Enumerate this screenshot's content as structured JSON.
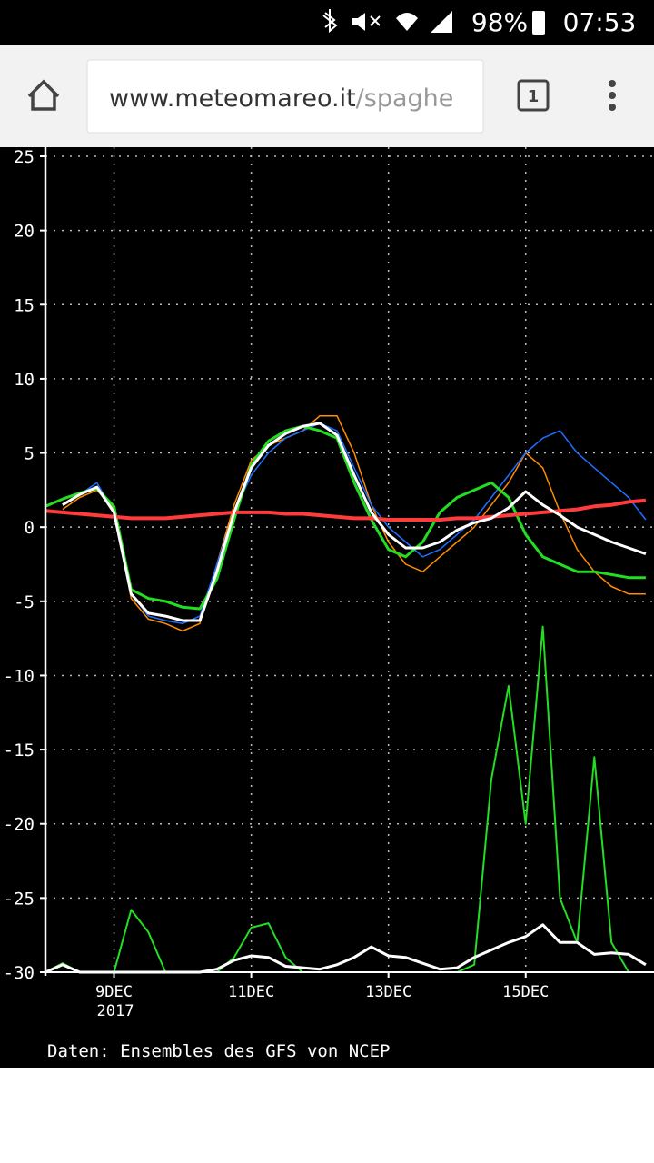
{
  "status_bar": {
    "battery": "98%",
    "time": "07:53"
  },
  "browser": {
    "url_domain": "www.meteomareo.it",
    "url_path": "/spaghe",
    "tab_count": "1"
  },
  "chart_data": {
    "type": "line",
    "year_label": "2017",
    "source": "Daten: Ensembles des GFS von NCEP",
    "x": [
      8,
      8.25,
      8.5,
      8.75,
      9,
      9.25,
      9.5,
      9.75,
      10,
      10.25,
      10.5,
      10.75,
      11,
      11.25,
      11.5,
      11.75,
      12,
      12.25,
      12.5,
      12.75,
      13,
      13.25,
      13.5,
      13.75,
      14,
      14.25,
      14.5,
      14.75,
      15,
      15.25,
      15.5,
      15.75,
      16,
      16.25,
      16.5,
      16.75
    ],
    "xlim": [
      8,
      16.87
    ],
    "xticks": [
      {
        "value": 9,
        "label": "9DEC"
      },
      {
        "value": 11,
        "label": "11DEC"
      },
      {
        "value": 13,
        "label": "13DEC"
      },
      {
        "value": 15,
        "label": "15DEC"
      },
      17
    ],
    "ylim": [
      -30,
      25
    ],
    "yticks": [
      25,
      20,
      15,
      10,
      5,
      0,
      -5,
      -10,
      -15,
      -20,
      -25,
      -30
    ],
    "grid": true,
    "series": [
      {
        "color": "#ff8c00",
        "width": 1.5,
        "values": [
          null,
          1.2,
          2.0,
          2.5,
          1.2,
          -4.8,
          -6.2,
          -6.5,
          -7.0,
          -6.5,
          -2.5,
          1.5,
          4.5,
          5.5,
          6.0,
          6.5,
          7.5,
          7.5,
          5.0,
          1.5,
          -1.0,
          -2.5,
          -3.0,
          -2.0,
          -1.0,
          0.0,
          1.5,
          3.0,
          5.0,
          4.0,
          1.0,
          -1.5,
          -3.0,
          -4.0,
          -4.5,
          -4.5
        ]
      },
      {
        "color": "#1e6fff",
        "width": 1.5,
        "values": [
          null,
          1.5,
          2.2,
          3.0,
          1.0,
          -4.5,
          -6.0,
          -6.3,
          -6.5,
          -6.0,
          -2.5,
          1.0,
          3.5,
          5.0,
          6.0,
          6.5,
          7.0,
          6.5,
          4.0,
          1.5,
          0.0,
          -1.0,
          -2.0,
          -1.5,
          -0.5,
          0.5,
          2.0,
          3.5,
          5.0,
          6.0,
          6.5,
          5.0,
          4.0,
          3.0,
          2.0,
          0.5
        ]
      },
      {
        "color": "#22dd22",
        "width": 3,
        "values": [
          1.4,
          1.9,
          2.3,
          2.6,
          1.4,
          -4.2,
          -4.8,
          -5.0,
          -5.4,
          -5.5,
          -3.5,
          0.5,
          4.2,
          5.8,
          6.5,
          6.8,
          6.5,
          6.0,
          3.0,
          0.5,
          -1.5,
          -2.0,
          -1.0,
          1.0,
          2.0,
          2.5,
          3.0,
          2.0,
          -0.5,
          -2.0,
          -2.5,
          -3.0,
          -3.0,
          -3.2,
          -3.4,
          -3.4
        ]
      },
      {
        "color": "#22dd22",
        "width": 2,
        "values": [
          -30,
          -29.4,
          -30,
          -30,
          -30,
          -25.8,
          -27.3,
          -30,
          -30,
          -30,
          -30,
          -29,
          -27,
          -26.7,
          -29,
          -30,
          -30,
          -30,
          -30,
          -30,
          -30,
          -30,
          -30,
          -30,
          -30,
          -29.5,
          -17,
          -10.7,
          -20,
          -6.7,
          -25,
          -28,
          -15.5,
          -28,
          -30,
          -30
        ]
      },
      {
        "color": "#ffffff",
        "width": 3,
        "values": [
          -30,
          -29.5,
          -30,
          -30,
          -30,
          -30,
          -30,
          -30,
          -30,
          -30,
          -29.8,
          -29.2,
          -28.9,
          -29.0,
          -29.6,
          -29.7,
          -29.8,
          -29.5,
          -29.0,
          -28.3,
          -28.9,
          -29.0,
          -29.4,
          -29.8,
          -29.7,
          -29.0,
          -28.5,
          -28.0,
          -27.6,
          -26.8,
          -28.0,
          -28.0,
          -28.8,
          -28.7,
          -28.8,
          -29.5
        ]
      },
      {
        "color": "#ff3b3b",
        "width": 4,
        "values": [
          1.1,
          1.0,
          0.9,
          0.8,
          0.7,
          0.6,
          0.6,
          0.6,
          0.7,
          0.8,
          0.9,
          1.0,
          1.0,
          1.0,
          0.9,
          0.9,
          0.8,
          0.7,
          0.6,
          0.6,
          0.5,
          0.5,
          0.5,
          0.5,
          0.6,
          0.6,
          0.7,
          0.8,
          0.9,
          1.0,
          1.1,
          1.2,
          1.4,
          1.5,
          1.7,
          1.8
        ]
      },
      {
        "color": "#ffffff",
        "width": 3,
        "values": [
          null,
          1.5,
          2.2,
          2.7,
          1.0,
          -4.5,
          -5.8,
          -6.0,
          -6.3,
          -6.3,
          -3.0,
          1.0,
          4.0,
          5.5,
          6.3,
          6.8,
          7.0,
          6.2,
          3.5,
          1.0,
          -0.5,
          -1.4,
          -1.4,
          -1.0,
          -0.2,
          0.3,
          0.6,
          1.3,
          2.4,
          1.5,
          0.8,
          0.0,
          -0.5,
          -1.0,
          -1.4,
          -1.8
        ]
      }
    ]
  }
}
